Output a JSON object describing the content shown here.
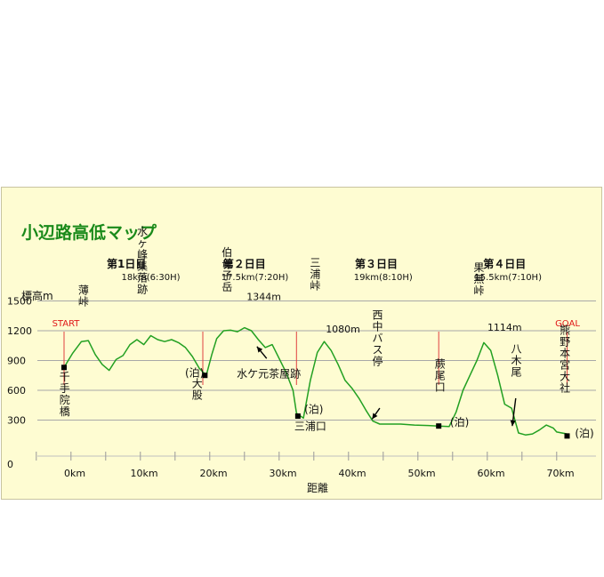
{
  "chart_data": {
    "type": "line",
    "title": "小辺路高低マップ",
    "ylabel": "標高m",
    "xlabel": "距離",
    "ylim": [
      0,
      1700
    ],
    "xlim": [
      -5,
      75
    ],
    "y_ticks": [
      "0",
      "300",
      "600",
      "900",
      "1200",
      "1500"
    ],
    "y_tick_values": [
      0,
      300,
      600,
      900,
      1200,
      1500
    ],
    "x_ticks": [
      "0km",
      "10km",
      "20km",
      "30km",
      "40km",
      "50km",
      "60km",
      "70km"
    ],
    "x_tick_values": [
      0,
      10,
      20,
      30,
      40,
      50,
      60,
      70
    ],
    "grid": true,
    "line_color": "#22a022",
    "grid_color": "#a8a8a8",
    "series": [
      {
        "x": [
          0,
          1.2,
          2.5,
          3.5,
          4.5,
          5.5,
          6.5,
          7.5,
          8.5,
          9.5,
          10.5,
          11.5,
          12.5,
          13.5,
          14.5,
          15.5,
          16.5,
          17.5,
          18.5,
          19.5,
          20.5,
          21.3,
          22,
          23,
          24,
          25,
          26,
          27,
          28,
          29,
          30,
          31,
          32,
          33,
          33.5,
          34.5,
          35.5,
          36.5,
          37.5,
          38.5,
          39.5,
          40.5,
          41.5,
          42.5,
          43.5,
          44.5,
          45.5,
          46.5,
          48.5,
          50.5,
          52.5,
          54,
          55.5,
          56.5,
          57.5,
          58.5,
          59.5,
          60.5,
          61.5,
          62.5,
          63.5,
          64.5,
          65.5,
          66.5,
          67.5,
          68.5,
          69.5,
          70.5,
          71,
          72.5
        ],
        "y": [
          830,
          970,
          1090,
          1100,
          960,
          860,
          800,
          910,
          950,
          1060,
          1110,
          1060,
          1150,
          1110,
          1090,
          1110,
          1080,
          1030,
          940,
          820,
          750,
          960,
          1120,
          1200,
          1205,
          1190,
          1230,
          1200,
          1110,
          1030,
          1060,
          920,
          780,
          600,
          370,
          320,
          700,
          980,
          1090,
          1000,
          860,
          700,
          620,
          520,
          400,
          290,
          260,
          260,
          260,
          250,
          245,
          240,
          235,
          380,
          600,
          750,
          900,
          1080,
          1000,
          750,
          460,
          420,
          170,
          150,
          160,
          200,
          250,
          220,
          180,
          160
        ]
      }
    ],
    "markers": [
      {
        "x": 0,
        "y": 830
      },
      {
        "x": 20.3,
        "y": 750
      },
      {
        "x": 33.7,
        "y": 340
      },
      {
        "x": 54,
        "y": 240
      },
      {
        "x": 72.5,
        "y": 140
      }
    ],
    "red_lines": [
      0,
      20,
      33.5,
      54,
      72.5
    ],
    "day_headers": [
      {
        "label": "第1日目",
        "dist": "18km(6:30H)",
        "x": 9,
        "x2": 12.5
      },
      {
        "label": "第２日目",
        "dist": "17.5km(7:20H)",
        "x": 26,
        "x2": 27.5
      },
      {
        "label": "第３日目",
        "dist": "19km(8:10H)",
        "x": 45,
        "x2": 46
      },
      {
        "label": "第４日目",
        "dist": "15.5km(7:10H)",
        "x": 63.5,
        "x2": 64
      }
    ],
    "start_label": "START",
    "goal_label": "GOAL",
    "annotations": [
      {
        "text": "千手院橋",
        "vertical": true,
        "x": 0.1,
        "y": 700
      },
      {
        "text": "薄峠",
        "vertical": true,
        "x": 2.8,
        "y": 1570
      },
      {
        "text": "水ヶ峰集落跡",
        "vertical": true,
        "x": 11.3,
        "y": 2160
      },
      {
        "text": "(泊)",
        "vertical": false,
        "x": 18.8,
        "y": 740
      },
      {
        "text": "大股",
        "vertical": true,
        "x": 19.2,
        "y": 630
      },
      {
        "text": "伯母子岳",
        "vertical": true,
        "x": 23.5,
        "y": 1950
      },
      {
        "text": "1344m",
        "vertical": false,
        "x": 28.8,
        "y": 1510
      },
      {
        "text": "水ケ元茶屋跡",
        "vertical": false,
        "x": 29.5,
        "y": 730
      },
      {
        "text": "(泊)",
        "vertical": false,
        "x": 36,
        "y": 370
      },
      {
        "text": "三浦口",
        "vertical": false,
        "x": 35.5,
        "y": 200
      },
      {
        "text": "三浦峠",
        "vertical": true,
        "x": 36.2,
        "y": 1850
      },
      {
        "text": "1080m",
        "vertical": false,
        "x": 40.2,
        "y": 1180
      },
      {
        "text": "西中バス停",
        "vertical": true,
        "x": 45.2,
        "y": 1320
      },
      {
        "text": "蕨尾口",
        "vertical": true,
        "x": 54.2,
        "y": 830
      },
      {
        "text": "(泊)",
        "vertical": false,
        "x": 57,
        "y": 240
      },
      {
        "text": "果無峠",
        "vertical": true,
        "x": 59.8,
        "y": 1800
      },
      {
        "text": "1114m",
        "vertical": false,
        "x": 63.5,
        "y": 1200
      },
      {
        "text": "八木尾",
        "vertical": true,
        "x": 65.2,
        "y": 980
      },
      {
        "text": "熊野本宮大社",
        "vertical": true,
        "x": 72.2,
        "y": 1170
      },
      {
        "text": "(泊)",
        "vertical": false,
        "x": 75,
        "y": 130
      }
    ],
    "arrows": [
      {
        "from": [
          29.2,
          920
        ],
        "to": [
          27.8,
          1040
        ]
      },
      {
        "from": [
          45.5,
          420
        ],
        "to": [
          44.4,
          310
        ]
      },
      {
        "from": [
          65.1,
          520
        ],
        "to": [
          64.6,
          240
        ]
      }
    ]
  }
}
